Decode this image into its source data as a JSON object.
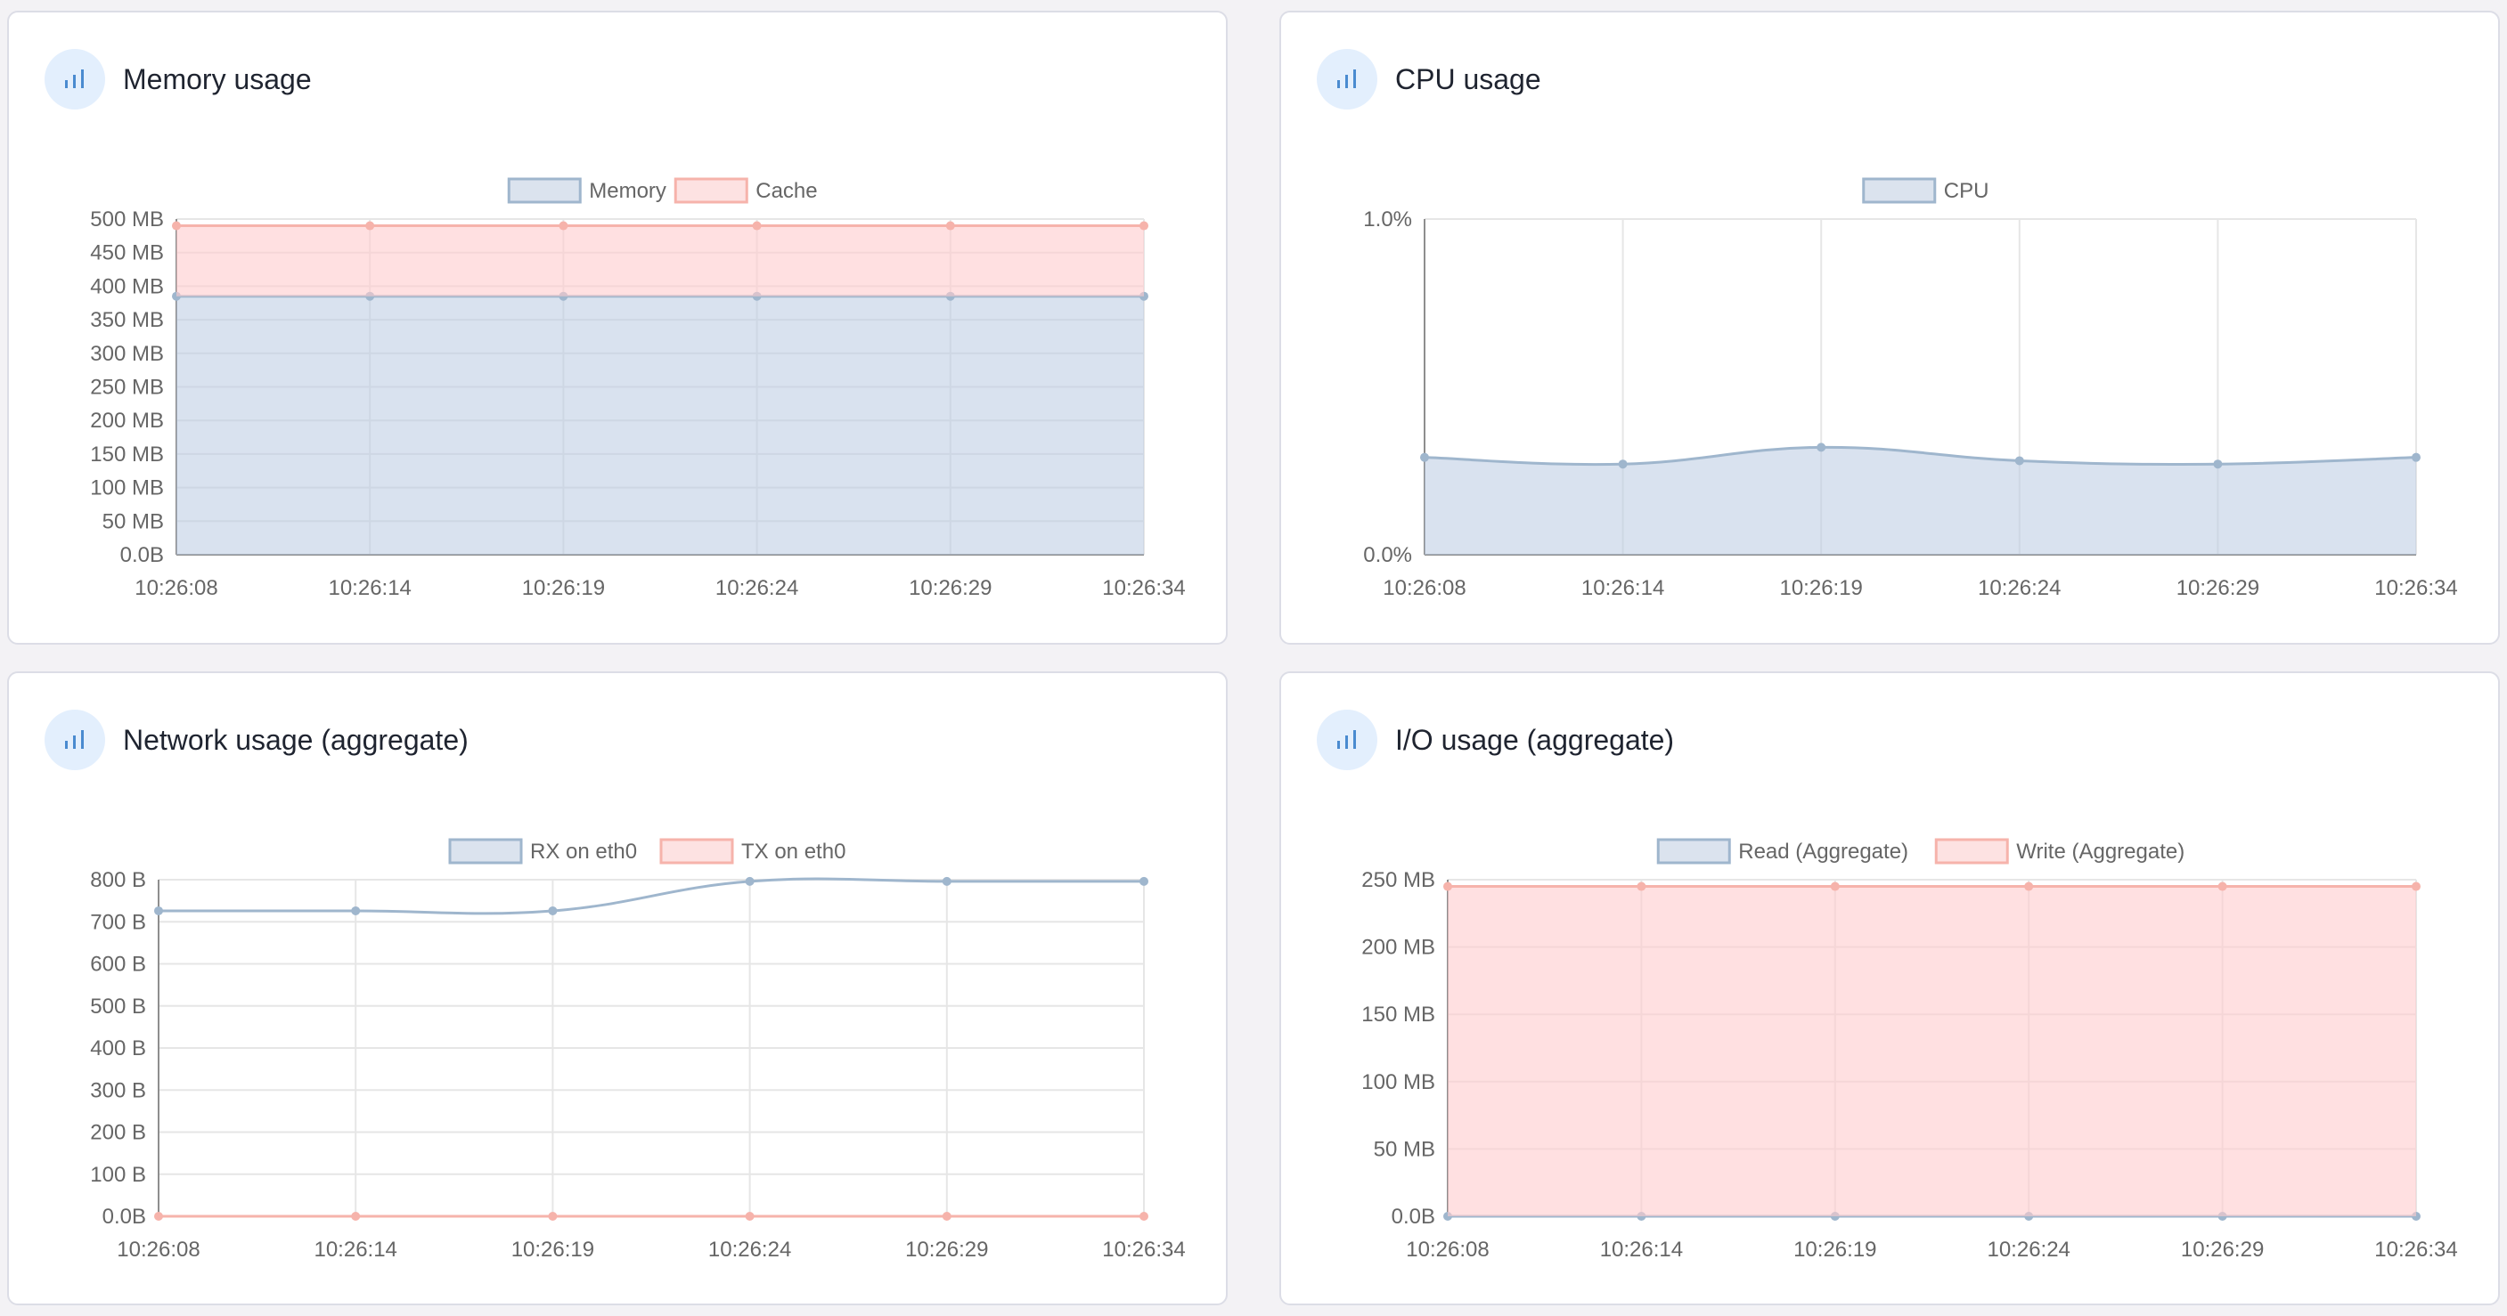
{
  "colors": {
    "blue_line": "#9fb6cd",
    "blue_fill": "rgba(185,203,225,0.55)",
    "blue_legend_fill": "#dbe3ee",
    "red_line": "#f6b3ab",
    "red_fill": "rgba(255,203,205,0.6)",
    "red_legend_fill": "#fde2e2",
    "grid": "#e6e6e6",
    "axis": "#8e8e8e"
  },
  "panels": [
    {
      "title": "Memory usage",
      "icon": "bar-chart-icon",
      "chart_data": {
        "type": "area",
        "x": [
          "10:26:08",
          "10:26:14",
          "10:26:19",
          "10:26:24",
          "10:26:29",
          "10:26:34"
        ],
        "y_ticks": [
          "500 MB",
          "450 MB",
          "400 MB",
          "350 MB",
          "300 MB",
          "250 MB",
          "200 MB",
          "150 MB",
          "100 MB",
          "50 MB",
          "0.0B"
        ],
        "ylim": [
          0,
          500
        ],
        "y_unit": "MB",
        "stacked": true,
        "smooth": false,
        "series": [
          {
            "name": "Memory",
            "color": "blue",
            "values": [
              385,
              385,
              385,
              385,
              385,
              385
            ]
          },
          {
            "name": "Cache",
            "color": "red",
            "values": [
              105,
              105,
              105,
              105,
              105,
              105
            ]
          }
        ]
      }
    },
    {
      "title": "CPU usage",
      "icon": "bar-chart-icon",
      "chart_data": {
        "type": "area",
        "x": [
          "10:26:08",
          "10:26:14",
          "10:26:19",
          "10:26:24",
          "10:26:29",
          "10:26:34"
        ],
        "y_ticks": [
          "1.0%",
          "0.0%"
        ],
        "ylim": [
          0,
          1.0
        ],
        "y_unit": "%",
        "stacked": false,
        "smooth": true,
        "series": [
          {
            "name": "CPU",
            "color": "blue",
            "values": [
              0.29,
              0.27,
              0.32,
              0.28,
              0.27,
              0.29
            ]
          }
        ]
      }
    },
    {
      "title": "Network usage (aggregate)",
      "icon": "bar-chart-icon",
      "chart_data": {
        "type": "line",
        "x": [
          "10:26:08",
          "10:26:14",
          "10:26:19",
          "10:26:24",
          "10:26:29",
          "10:26:34"
        ],
        "y_ticks": [
          "800 B",
          "700 B",
          "600 B",
          "500 B",
          "400 B",
          "300 B",
          "200 B",
          "100 B",
          "0.0B"
        ],
        "ylim": [
          0,
          800
        ],
        "y_unit": "B",
        "stacked": false,
        "smooth": true,
        "series": [
          {
            "name": "RX on eth0",
            "color": "blue",
            "values": [
              726,
              726,
              726,
              796,
              796,
              796
            ]
          },
          {
            "name": "TX on eth0",
            "color": "red",
            "values": [
              0,
              0,
              0,
              0,
              0,
              0
            ]
          }
        ]
      }
    },
    {
      "title": "I/O usage (aggregate)",
      "icon": "bar-chart-icon",
      "chart_data": {
        "type": "area",
        "x": [
          "10:26:08",
          "10:26:14",
          "10:26:19",
          "10:26:24",
          "10:26:29",
          "10:26:34"
        ],
        "y_ticks": [
          "250 MB",
          "200 MB",
          "150 MB",
          "100 MB",
          "50 MB",
          "0.0B"
        ],
        "ylim": [
          0,
          250
        ],
        "y_unit": "MB",
        "stacked": true,
        "smooth": false,
        "series": [
          {
            "name": "Read (Aggregate)",
            "color": "blue",
            "values": [
              0,
              0,
              0,
              0,
              0,
              0
            ]
          },
          {
            "name": "Write (Aggregate)",
            "color": "red",
            "values": [
              245,
              245,
              245,
              245,
              245,
              245
            ]
          }
        ]
      }
    }
  ]
}
